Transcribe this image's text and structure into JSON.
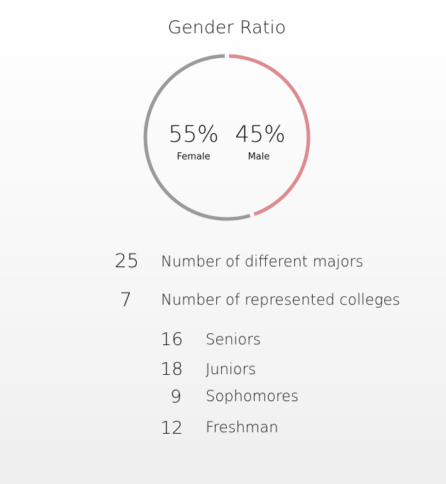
{
  "chart_data": {
    "type": "pie",
    "title": "Gender Ratio",
    "categories": [
      "Female",
      "Male"
    ],
    "values": [
      55,
      45
    ],
    "value_labels": [
      "55%",
      "45%"
    ],
    "colors": [
      "#999999",
      "#dd8a8e"
    ]
  },
  "stats": [
    {
      "value": "25",
      "label": "Number of different majors"
    },
    {
      "value": "7",
      "label": "Number of represented colleges"
    }
  ],
  "classes": [
    {
      "value": "16",
      "label": "Seniors"
    },
    {
      "value": "18",
      "label": "Juniors"
    },
    {
      "value": "9",
      "label": "Sophomores"
    },
    {
      "value": "12",
      "label": "Freshman"
    }
  ]
}
